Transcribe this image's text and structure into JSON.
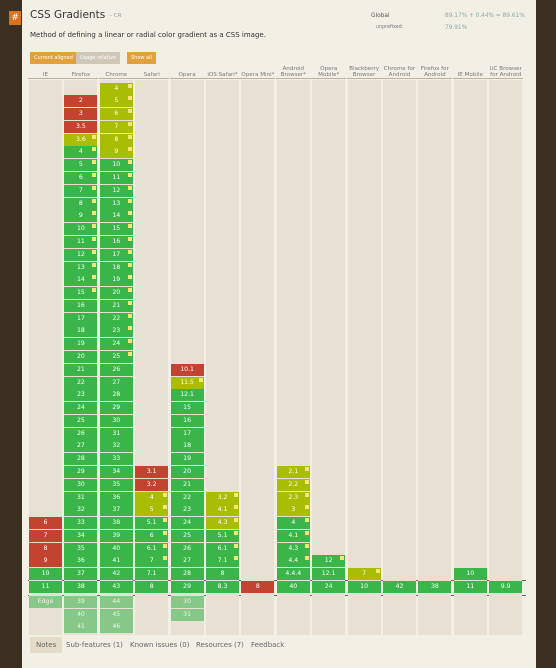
{
  "header": {
    "icon": "#",
    "title": "CSS Gradients",
    "status": "- CR",
    "description": "Method of defining a linear or radial color gradient as a CSS image.",
    "global_label": "Global",
    "global_usage": "89.17% + 0.44% = 89.61%",
    "unprefixed_label": "unprefixed:",
    "unprefixed_usage": "79.91%"
  },
  "controls": [
    "Current aligned",
    "Usage relative",
    "Show all"
  ],
  "browsers": [
    {
      "name": "IE",
      "past": [
        [
          "6",
          "n"
        ],
        [
          "7",
          "n"
        ],
        [
          "8",
          "n"
        ],
        [
          "9",
          "n"
        ],
        [
          "10",
          "y"
        ]
      ],
      "current": [
        "11",
        "y"
      ],
      "future": [
        [
          "Edge",
          "y"
        ]
      ]
    },
    {
      "name": "Firefox",
      "past": [
        [
          "2",
          "n"
        ],
        [
          "3",
          "n"
        ],
        [
          "3.5",
          "n"
        ],
        [
          "3.6",
          "a x"
        ],
        [
          "4",
          "y x"
        ],
        [
          "5",
          "y x"
        ],
        [
          "6",
          "y x"
        ],
        [
          "7",
          "y x"
        ],
        [
          "8",
          "y x"
        ],
        [
          "9",
          "y x"
        ],
        [
          "10",
          "y x"
        ],
        [
          "11",
          "y x"
        ],
        [
          "12",
          "y x"
        ],
        [
          "13",
          "y x"
        ],
        [
          "14",
          "y x"
        ],
        [
          "15",
          "y x"
        ],
        [
          "16",
          "y"
        ],
        [
          "17",
          "y"
        ],
        [
          "18",
          "y"
        ],
        [
          "19",
          "y"
        ],
        [
          "20",
          "y"
        ],
        [
          "21",
          "y"
        ],
        [
          "22",
          "y"
        ],
        [
          "23",
          "y"
        ],
        [
          "24",
          "y"
        ],
        [
          "25",
          "y"
        ],
        [
          "26",
          "y"
        ],
        [
          "27",
          "y"
        ],
        [
          "28",
          "y"
        ],
        [
          "29",
          "y"
        ],
        [
          "30",
          "y"
        ],
        [
          "31",
          "y"
        ],
        [
          "32",
          "y"
        ],
        [
          "33",
          "y"
        ],
        [
          "34",
          "y"
        ],
        [
          "35",
          "y"
        ],
        [
          "36",
          "y"
        ],
        [
          "37",
          "y"
        ]
      ],
      "current": [
        "38",
        "y"
      ],
      "future": [
        [
          "39",
          "y"
        ],
        [
          "40",
          "y"
        ],
        [
          "41",
          "y"
        ]
      ]
    },
    {
      "name": "Chrome",
      "past": [
        [
          "4",
          "a x"
        ],
        [
          "5",
          "a x"
        ],
        [
          "6",
          "a x"
        ],
        [
          "7",
          "a x"
        ],
        [
          "8",
          "a x"
        ],
        [
          "9",
          "a x"
        ],
        [
          "10",
          "y x"
        ],
        [
          "11",
          "y x"
        ],
        [
          "12",
          "y x"
        ],
        [
          "13",
          "y x"
        ],
        [
          "14",
          "y x"
        ],
        [
          "15",
          "y x"
        ],
        [
          "16",
          "y x"
        ],
        [
          "17",
          "y x"
        ],
        [
          "18",
          "y x"
        ],
        [
          "19",
          "y x"
        ],
        [
          "20",
          "y x"
        ],
        [
          "21",
          "y x"
        ],
        [
          "22",
          "y x"
        ],
        [
          "23",
          "y x"
        ],
        [
          "24",
          "y x"
        ],
        [
          "25",
          "y x"
        ],
        [
          "26",
          "y"
        ],
        [
          "27",
          "y"
        ],
        [
          "28",
          "y"
        ],
        [
          "29",
          "y"
        ],
        [
          "30",
          "y"
        ],
        [
          "31",
          "y"
        ],
        [
          "32",
          "y"
        ],
        [
          "33",
          "y"
        ],
        [
          "34",
          "y"
        ],
        [
          "35",
          "y"
        ],
        [
          "36",
          "y"
        ],
        [
          "37",
          "y"
        ],
        [
          "38",
          "y"
        ],
        [
          "39",
          "y"
        ],
        [
          "40",
          "y"
        ],
        [
          "41",
          "y"
        ],
        [
          "42",
          "y"
        ]
      ],
      "current": [
        "43",
        "y"
      ],
      "future": [
        [
          "44",
          "y"
        ],
        [
          "45",
          "y"
        ],
        [
          "46",
          "y"
        ]
      ]
    },
    {
      "name": "Safari",
      "past": [
        [
          "3.1",
          "n"
        ],
        [
          "3.2",
          "n"
        ],
        [
          "4",
          "a x"
        ],
        [
          "5",
          "a x"
        ],
        [
          "5.1",
          "y x"
        ],
        [
          "6",
          "y x"
        ],
        [
          "6.1",
          "y x"
        ],
        [
          "7",
          "y x"
        ],
        [
          "7.1",
          "y"
        ]
      ],
      "current": [
        "8",
        "y"
      ],
      "future": []
    },
    {
      "name": "Opera",
      "past": [
        [
          "10.1",
          "n"
        ],
        [
          "11.5",
          "a x"
        ],
        [
          "12.1",
          "y"
        ],
        [
          "15",
          "y"
        ],
        [
          "16",
          "y"
        ],
        [
          "17",
          "y"
        ],
        [
          "18",
          "y"
        ],
        [
          "19",
          "y"
        ],
        [
          "20",
          "y"
        ],
        [
          "21",
          "y"
        ],
        [
          "22",
          "y"
        ],
        [
          "23",
          "y"
        ],
        [
          "24",
          "y"
        ],
        [
          "25",
          "y"
        ],
        [
          "26",
          "y"
        ],
        [
          "27",
          "y"
        ],
        [
          "28",
          "y"
        ]
      ],
      "current": [
        "29",
        "y"
      ],
      "future": [
        [
          "30",
          "y"
        ],
        [
          "31",
          "y"
        ]
      ]
    },
    {
      "name": "iOS Safari*",
      "past": [
        [
          "3.2",
          "a x"
        ],
        [
          "4.1",
          "a x"
        ],
        [
          "4.3",
          "a x"
        ],
        [
          "5.1",
          "y x"
        ],
        [
          "6.1",
          "y x"
        ],
        [
          "7.1",
          "y x"
        ],
        [
          "8",
          "y"
        ]
      ],
      "current": [
        "8.3",
        "y"
      ],
      "future": []
    },
    {
      "name": "Opera Mini*",
      "past": [],
      "current": [
        "8",
        "n"
      ],
      "future": []
    },
    {
      "name": "Android Browser*",
      "past": [
        [
          "2.1",
          "a x"
        ],
        [
          "2.2",
          "a x"
        ],
        [
          "2.3",
          "a x"
        ],
        [
          "3",
          "a x"
        ],
        [
          "4",
          "y x"
        ],
        [
          "4.1",
          "y x"
        ],
        [
          "4.3",
          "y x"
        ],
        [
          "4.4",
          "y x"
        ],
        [
          "4.4.4",
          "y"
        ]
      ],
      "current": [
        "40",
        "y"
      ],
      "future": []
    },
    {
      "name": "Opera Mobile*",
      "past": [
        [
          "12",
          "y x"
        ],
        [
          "12.1",
          "y"
        ]
      ],
      "current": [
        "24",
        "y"
      ],
      "future": []
    },
    {
      "name": "Blackberry Browser",
      "past": [
        [
          "7",
          "a x"
        ]
      ],
      "current": [
        "10",
        "y"
      ],
      "future": []
    },
    {
      "name": "Chrome for Android",
      "past": [],
      "current": [
        "42",
        "y"
      ],
      "future": []
    },
    {
      "name": "Firefox for Android",
      "past": [],
      "current": [
        "38",
        "y"
      ],
      "future": []
    },
    {
      "name": "IE Mobile",
      "past": [
        [
          "10",
          "y"
        ]
      ],
      "current": [
        "11",
        "y"
      ],
      "future": []
    },
    {
      "name": "UC Browser for Android",
      "past": [],
      "current": [
        "9.9",
        "y"
      ],
      "future": []
    }
  ],
  "tabs": [
    "Notes",
    "Sub-features (1)",
    "Known issues (0)",
    "Resources (7)",
    "Feedback"
  ]
}
